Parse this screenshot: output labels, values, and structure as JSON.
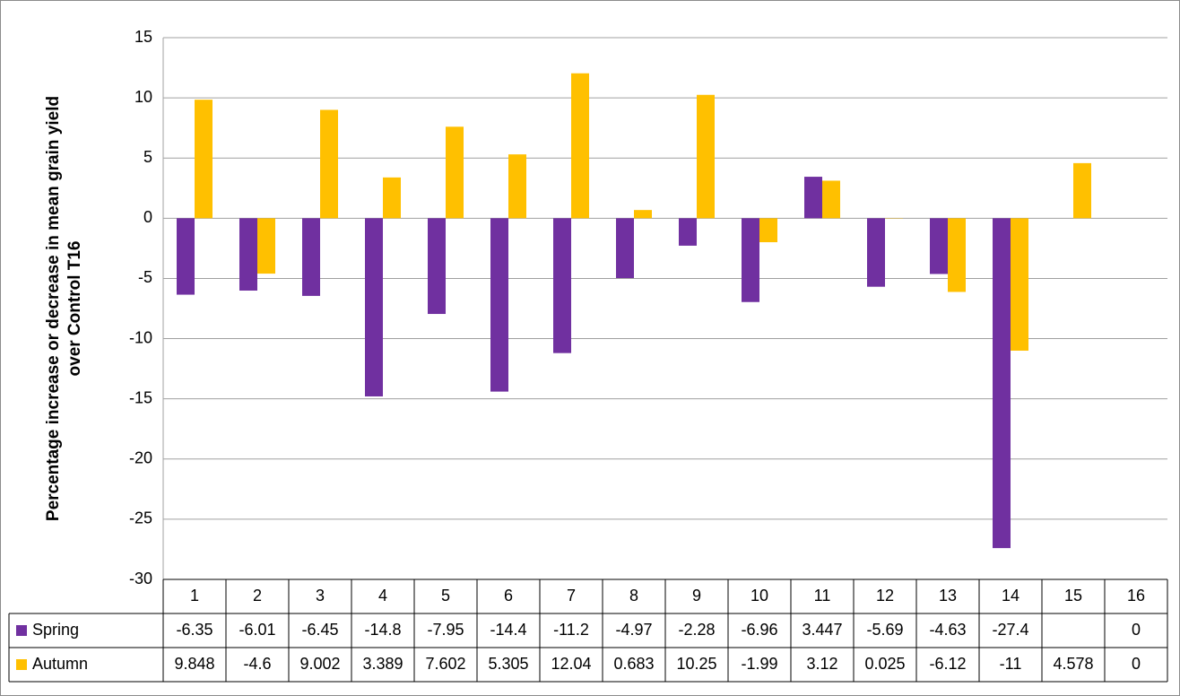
{
  "chart_data": {
    "type": "bar",
    "ylabel": [
      "Percentage increase or decrease in mean grain yield",
      "over Control T16"
    ],
    "categories": [
      "1",
      "2",
      "3",
      "4",
      "5",
      "6",
      "7",
      "8",
      "9",
      "10",
      "11",
      "12",
      "13",
      "14",
      "15",
      "16"
    ],
    "series": [
      {
        "name": "Spring",
        "color": "#7030a0",
        "values": [
          -6.35,
          -6.01,
          -6.45,
          -14.8,
          -7.95,
          -14.4,
          -11.2,
          -4.97,
          -2.28,
          -6.96,
          3.447,
          -5.69,
          -4.63,
          -27.4,
          null,
          0
        ]
      },
      {
        "name": "Autumn",
        "color": "#ffc000",
        "values": [
          9.848,
          -4.6,
          9.002,
          3.389,
          7.602,
          5.305,
          12.04,
          0.683,
          10.25,
          -1.99,
          3.12,
          0.025,
          -6.12,
          -11,
          4.578,
          0
        ]
      }
    ],
    "ylim": [
      -30,
      15
    ],
    "yticks": [
      -30,
      -25,
      -20,
      -15,
      -10,
      -5,
      0,
      5,
      10,
      15
    ],
    "grid": true,
    "data_table": true
  }
}
